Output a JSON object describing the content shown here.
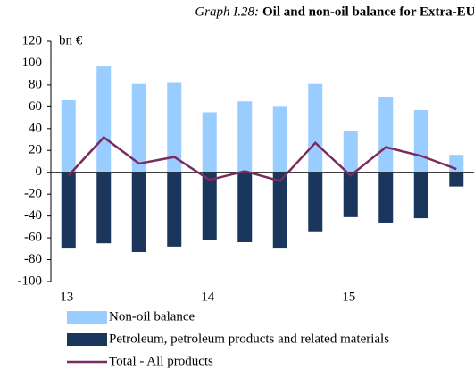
{
  "chart_data": {
    "type": "bar_line",
    "title_prefix": "Graph I.28:",
    "title": "Oil and non-oil balance for Extra-EU trade",
    "ylabel": "bn €",
    "categories": [
      "13",
      null,
      null,
      null,
      "14",
      null,
      null,
      null,
      "15",
      null,
      null,
      null
    ],
    "series": [
      {
        "name": "Non-oil balance",
        "color": "#99ccff",
        "kind": "bar",
        "values": [
          66,
          97,
          81,
          82,
          55,
          65,
          60,
          81,
          38,
          69,
          57,
          16
        ]
      },
      {
        "name": "Petroleum, petroleum products and related materials",
        "color": "#1b365d",
        "kind": "bar",
        "values": [
          -69,
          -65,
          -73,
          -68,
          -62,
          -64,
          -69,
          -54,
          -41,
          -46,
          -42,
          -13
        ]
      },
      {
        "name": "Total - All products",
        "color": "#7b2c5e",
        "kind": "line",
        "values": [
          -3,
          32,
          8,
          14,
          -7,
          1,
          -8,
          27,
          -3,
          23,
          15,
          3
        ]
      }
    ],
    "ylim": [
      -100,
      120
    ],
    "yticks": [
      -100,
      -80,
      -60,
      -40,
      -20,
      0,
      20,
      40,
      60,
      80,
      100,
      120
    ]
  }
}
